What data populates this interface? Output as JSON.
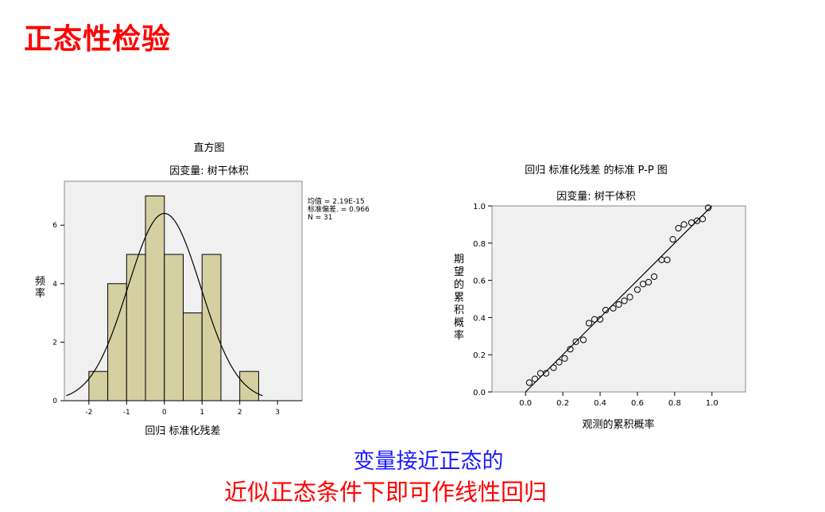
{
  "slide": {
    "title": "正态性检验",
    "caption_line1": "变量接近正态的",
    "caption_line2": "近似正态条件下即可作线性回归"
  },
  "colors": {
    "title": "#ff0000",
    "caption_line1": "#1a1aff",
    "caption_line2": "#ff0000",
    "histogram_bar": "#d5d0a2",
    "plot_background": "#f0f0f0"
  },
  "chart_data": [
    {
      "type": "bar",
      "subtype": "histogram",
      "title": "直方图",
      "subtitle": "因变量: 树干体积",
      "xlabel": "回归 标准化残差",
      "ylabel": "频率",
      "bins": [
        {
          "from": -2.0,
          "to": -1.5,
          "count": 1
        },
        {
          "from": -1.5,
          "to": -1.0,
          "count": 4
        },
        {
          "from": -1.0,
          "to": -0.5,
          "count": 5
        },
        {
          "from": -0.5,
          "to": 0.0,
          "count": 7
        },
        {
          "from": 0.0,
          "to": 0.5,
          "count": 5
        },
        {
          "from": 0.5,
          "to": 1.0,
          "count": 3
        },
        {
          "from": 1.0,
          "to": 1.5,
          "count": 5
        },
        {
          "from": 1.5,
          "to": 2.0,
          "count": 0
        },
        {
          "from": 2.0,
          "to": 2.5,
          "count": 1
        }
      ],
      "xlim": [
        -2.65,
        3.65
      ],
      "ylim": [
        0,
        7.5
      ],
      "xticks": [
        "-2",
        "-1",
        "0",
        "1",
        "2",
        "3"
      ],
      "yticks": [
        "0",
        "2",
        "4",
        "6"
      ],
      "normal_curve": {
        "mean": 0.0,
        "sd": 0.966,
        "n": 31,
        "bin_width": 0.5
      },
      "stats": [
        "均值 = 2.19E-15",
        "标准偏差. = 0.966",
        "N = 31"
      ],
      "legend_position": "right"
    },
    {
      "type": "scatter",
      "subtype": "p-p-plot",
      "title": "回归 标准化残差 的标准 P-P 图",
      "subtitle": "因变量: 树干体积",
      "xlabel": "观测的累积概率",
      "ylabel": "期望的累积概率",
      "xlim": [
        -0.18,
        1.18
      ],
      "ylim": [
        0,
        1.0
      ],
      "xticks": [
        "0.0",
        "0.2",
        "0.4",
        "0.6",
        "0.8",
        "1.0"
      ],
      "yticks": [
        "0.0",
        "0.2",
        "0.4",
        "0.6",
        "0.8",
        "1.0"
      ],
      "reference_line": {
        "from": [
          0,
          0
        ],
        "to": [
          1,
          1
        ]
      },
      "points": [
        {
          "x": 0.02,
          "y": 0.05
        },
        {
          "x": 0.05,
          "y": 0.07
        },
        {
          "x": 0.08,
          "y": 0.1
        },
        {
          "x": 0.11,
          "y": 0.1
        },
        {
          "x": 0.15,
          "y": 0.13
        },
        {
          "x": 0.18,
          "y": 0.16
        },
        {
          "x": 0.21,
          "y": 0.18
        },
        {
          "x": 0.24,
          "y": 0.23
        },
        {
          "x": 0.27,
          "y": 0.27
        },
        {
          "x": 0.31,
          "y": 0.28
        },
        {
          "x": 0.34,
          "y": 0.37
        },
        {
          "x": 0.37,
          "y": 0.39
        },
        {
          "x": 0.4,
          "y": 0.39
        },
        {
          "x": 0.43,
          "y": 0.44
        },
        {
          "x": 0.47,
          "y": 0.45
        },
        {
          "x": 0.5,
          "y": 0.47
        },
        {
          "x": 0.53,
          "y": 0.49
        },
        {
          "x": 0.56,
          "y": 0.51
        },
        {
          "x": 0.6,
          "y": 0.55
        },
        {
          "x": 0.63,
          "y": 0.58
        },
        {
          "x": 0.66,
          "y": 0.59
        },
        {
          "x": 0.69,
          "y": 0.62
        },
        {
          "x": 0.73,
          "y": 0.71
        },
        {
          "x": 0.76,
          "y": 0.71
        },
        {
          "x": 0.79,
          "y": 0.82
        },
        {
          "x": 0.82,
          "y": 0.88
        },
        {
          "x": 0.85,
          "y": 0.9
        },
        {
          "x": 0.89,
          "y": 0.91
        },
        {
          "x": 0.92,
          "y": 0.92
        },
        {
          "x": 0.95,
          "y": 0.93
        },
        {
          "x": 0.98,
          "y": 0.99
        }
      ]
    }
  ]
}
